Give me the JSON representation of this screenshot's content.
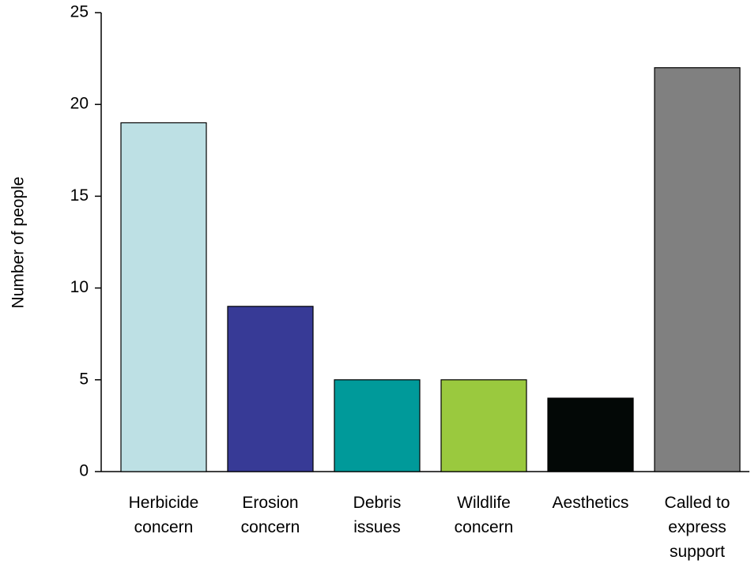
{
  "chart_data": {
    "type": "bar",
    "y_label": "Number of people",
    "categories": [
      "Herbicide\nconcern",
      "Erosion\nconcern",
      "Debris\nissues",
      "Wildlife\nconcern",
      "Aesthetics",
      "Called to\nexpress\nsupport"
    ],
    "values": [
      19,
      9,
      5,
      5,
      4,
      22
    ],
    "colors": [
      "#bde0e4",
      "#373a96",
      "#009a9a",
      "#9ac93e",
      "#030806",
      "#808080"
    ],
    "ylim": [
      0,
      25
    ],
    "yticks": [
      0,
      5,
      10,
      15,
      20,
      25
    ],
    "grid": false
  }
}
